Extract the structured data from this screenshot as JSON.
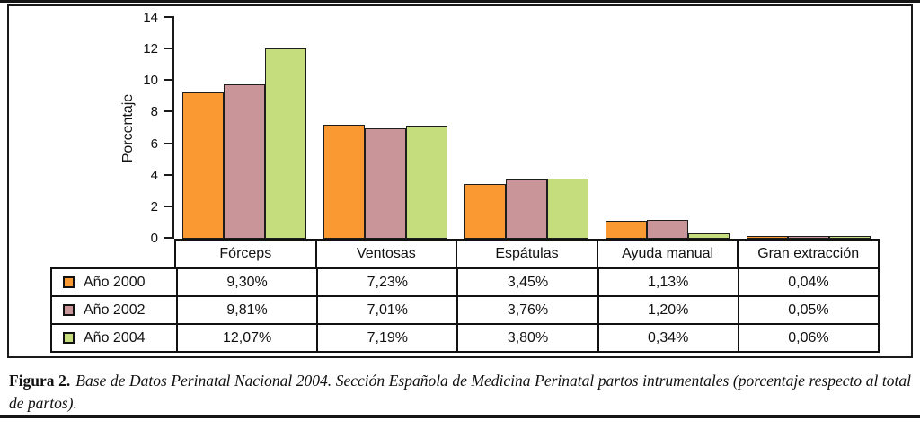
{
  "figure": {
    "caption_label": "Figura 2.",
    "caption_text": "Base de Datos Perinatal Nacional 2004. Sección Española de Medicina Perinatal partos intrumentales (porcentaje respecto al total de partos)."
  },
  "colors": {
    "year_2000": "#FA9932",
    "year_2002": "#C99598",
    "year_2004": "#C5DD7D",
    "line": "#1a1a1a"
  },
  "chart_data": {
    "type": "bar",
    "title": "",
    "xlabel": "",
    "ylabel": "Porcentaje",
    "ylim": [
      0,
      14
    ],
    "yticks": [
      0,
      2,
      4,
      6,
      8,
      10,
      12,
      14
    ],
    "grid": false,
    "legend_position": "table-left",
    "categories": [
      "Fórceps",
      "Ventosas",
      "Espátulas",
      "Ayuda manual",
      "Gran extracción"
    ],
    "series": [
      {
        "name": "Año 2000",
        "color": "#FA9932",
        "values": [
          9.3,
          7.23,
          3.45,
          1.13,
          0.04
        ],
        "labels": [
          "9,30%",
          "7,23%",
          "3,45%",
          "1,13%",
          "0,04%"
        ]
      },
      {
        "name": "Año 2002",
        "color": "#C99598",
        "values": [
          9.81,
          7.01,
          3.76,
          1.2,
          0.05
        ],
        "labels": [
          "9,81%",
          "7,01%",
          "3,76%",
          "1,20%",
          "0,05%"
        ]
      },
      {
        "name": "Año 2004",
        "color": "#C5DD7D",
        "values": [
          12.07,
          7.19,
          3.8,
          0.34,
          0.06
        ],
        "labels": [
          "12,07%",
          "7,19%",
          "3,80%",
          "0,34%",
          "0,06%"
        ]
      }
    ]
  }
}
